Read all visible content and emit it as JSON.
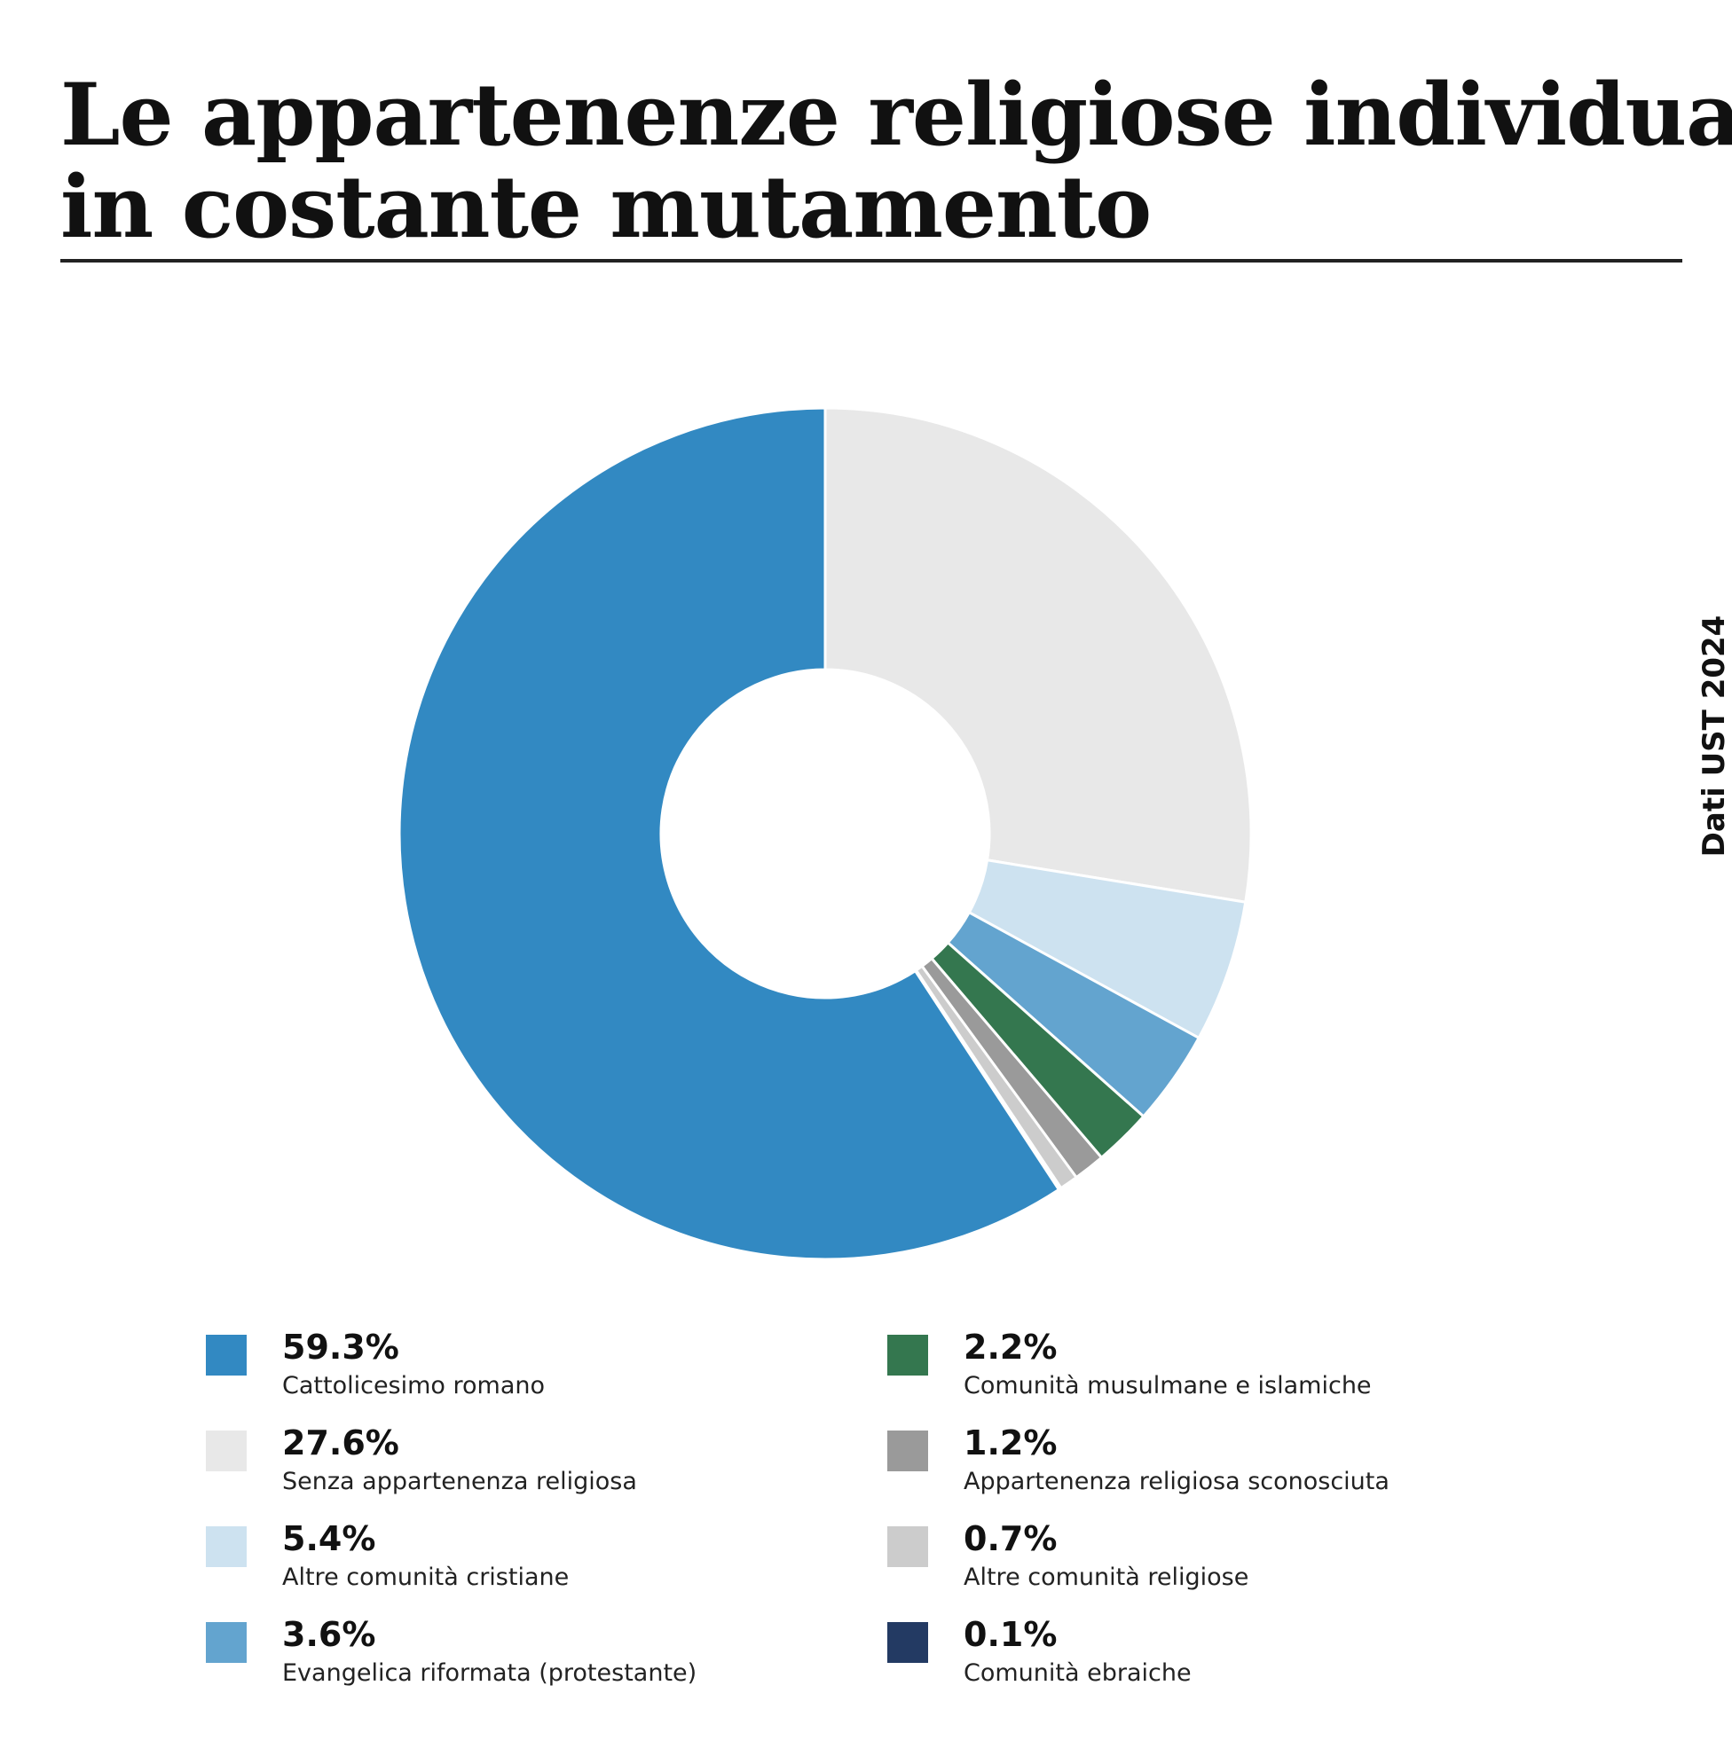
{
  "header": {
    "title_line1": "Le appartenenze religiose individuali",
    "title_line2": "in costante mutamento"
  },
  "source": "Dati UST 2024",
  "chart_data": {
    "type": "pie",
    "donut": true,
    "unit": "%",
    "slices": [
      {
        "value": 27.6,
        "label": "Senza appartenenza religiosa",
        "value_label": "27.6%",
        "color": "#e8e8e8"
      },
      {
        "value": 5.4,
        "label": "Altre comunità cristiane",
        "value_label": "5.4%",
        "color": "#cde2f0"
      },
      {
        "value": 3.6,
        "label": "Evangelica riformata (protestante)",
        "value_label": "3.6%",
        "color": "#63a4cf"
      },
      {
        "value": 2.2,
        "label": "Comunità musulmane e islamiche",
        "value_label": "2.2%",
        "color": "#34774f"
      },
      {
        "value": 1.2,
        "label": "Appartenenza religiosa sconosciuta",
        "value_label": "1.2%",
        "color": "#9a9a9a"
      },
      {
        "value": 0.7,
        "label": "Altre comunità religiose",
        "value_label": "0.7%",
        "color": "#cccccc"
      },
      {
        "value": 0.1,
        "label": "Comunità ebraiche",
        "value_label": "0.1%",
        "color": "#233a63"
      },
      {
        "value": 59.3,
        "label": "Cattolicesimo romano",
        "value_label": "59.3%",
        "color": "#3289c2"
      }
    ],
    "legend": [
      {
        "value_label": "59.3%",
        "label": "Cattolicesimo romano",
        "color": "#3289c2"
      },
      {
        "value_label": "27.6%",
        "label": "Senza appartenenza religiosa",
        "color": "#e8e8e8"
      },
      {
        "value_label": "5.4%",
        "label": "Altre comunità cristiane",
        "color": "#cde2f0"
      },
      {
        "value_label": "3.6%",
        "label": "Evangelica riformata (protestante)",
        "color": "#63a4cf"
      },
      {
        "value_label": "2.2%",
        "label": "Comunità musulmane e islamiche",
        "color": "#34774f"
      },
      {
        "value_label": "1.2%",
        "label": "Appartenenza religiosa sconosciuta",
        "color": "#9a9a9a"
      },
      {
        "value_label": "0.7%",
        "label": "Altre comunità religiose",
        "color": "#cccccc"
      },
      {
        "value_label": "0.1%",
        "label": "Comunità ebraiche",
        "color": "#233a63"
      }
    ]
  }
}
